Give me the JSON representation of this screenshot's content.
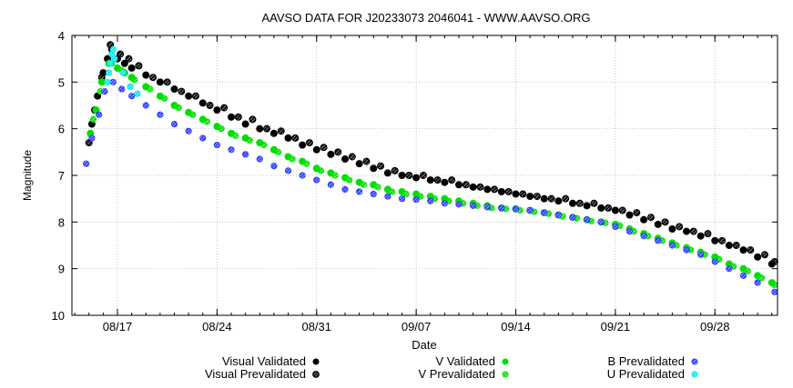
{
  "chart_data": {
    "type": "scatter",
    "title": "AAVSO DATA FOR J20233073 2046041 - WWW.AAVSO.ORG",
    "xlabel": "Date",
    "ylabel": "Magnitude",
    "x_unit": "day of 2023 (tick labels mm/dd)",
    "xlim": [
      225.8,
      275.4
    ],
    "ylim": [
      10,
      4
    ],
    "y_reversed": true,
    "grid": true,
    "x_ticks": [
      {
        "x": 229,
        "label": "08/17"
      },
      {
        "x": 236,
        "label": "08/24"
      },
      {
        "x": 243,
        "label": "08/31"
      },
      {
        "x": 250,
        "label": "09/07"
      },
      {
        "x": 257,
        "label": "09/14"
      },
      {
        "x": 264,
        "label": "09/21"
      },
      {
        "x": 271,
        "label": "09/28"
      }
    ],
    "y_ticks": [
      4,
      5,
      6,
      7,
      8,
      9,
      10
    ],
    "legend_position": "bottom",
    "series": [
      {
        "name": "Visual Validated",
        "color": "#000000",
        "marker": "filled-circle",
        "x": [
          227.2,
          227.6,
          228.0,
          228.3,
          228.6,
          229.0,
          229.5,
          230.0,
          231.0,
          232.0,
          233.0,
          234.0,
          235.0,
          236.0,
          237.0,
          238.0,
          239.0,
          240.0,
          241.0,
          242.0,
          243.0,
          244.0,
          245.0,
          246.0,
          247.0,
          248.0,
          249.0,
          250.0,
          251.0,
          252.0,
          253.0,
          254.0,
          255.0,
          256.0,
          257.0,
          258.0,
          259.0,
          260.0,
          261.0,
          262.0,
          263.0,
          264.0,
          265.0,
          266.0,
          267.0,
          268.0,
          269.0,
          270.0,
          271.0,
          272.0,
          273.0,
          274.0,
          275.0
        ],
        "y": [
          5.9,
          5.3,
          4.8,
          4.5,
          4.3,
          4.5,
          4.6,
          4.7,
          4.85,
          5.0,
          5.15,
          5.3,
          5.45,
          5.6,
          5.75,
          5.9,
          6.0,
          6.1,
          6.2,
          6.35,
          6.45,
          6.55,
          6.65,
          6.75,
          6.85,
          6.95,
          7.0,
          7.05,
          7.1,
          7.15,
          7.2,
          7.25,
          7.3,
          7.35,
          7.4,
          7.45,
          7.5,
          7.55,
          7.6,
          7.65,
          7.7,
          7.75,
          7.85,
          7.95,
          8.05,
          8.15,
          8.2,
          8.3,
          8.4,
          8.5,
          8.6,
          8.75,
          8.9
        ]
      },
      {
        "name": "Visual Prevalidated",
        "color": "#000000",
        "marker": "hatched-circle",
        "x": [
          227.0,
          227.4,
          227.9,
          228.5,
          229.2,
          229.8,
          230.5,
          231.5,
          232.5,
          233.5,
          234.5,
          235.5,
          236.5,
          237.5,
          238.5,
          239.5,
          240.5,
          241.5,
          242.5,
          243.5,
          244.5,
          245.5,
          246.5,
          247.5,
          248.5,
          249.5,
          250.5,
          251.5,
          252.5,
          253.5,
          254.5,
          255.5,
          256.5,
          257.5,
          258.5,
          259.5,
          260.5,
          261.5,
          262.5,
          263.5,
          264.5,
          265.5,
          266.5,
          267.5,
          268.5,
          269.5,
          270.5,
          271.5,
          272.5,
          273.5,
          274.5,
          275.2
        ],
        "y": [
          6.3,
          5.6,
          4.9,
          4.2,
          4.4,
          4.5,
          4.65,
          4.9,
          5.0,
          5.2,
          5.3,
          5.5,
          5.55,
          5.75,
          5.8,
          6.0,
          6.05,
          6.2,
          6.3,
          6.4,
          6.5,
          6.6,
          6.7,
          6.8,
          6.9,
          7.0,
          7.0,
          7.1,
          7.1,
          7.2,
          7.25,
          7.3,
          7.35,
          7.4,
          7.45,
          7.5,
          7.5,
          7.6,
          7.6,
          7.7,
          7.75,
          7.8,
          7.9,
          8.0,
          8.1,
          8.2,
          8.25,
          8.4,
          8.5,
          8.6,
          8.7,
          8.85
        ]
      },
      {
        "name": "V Validated",
        "color": "#00e000",
        "marker": "filled-circle",
        "x": [
          227.1,
          227.5,
          227.9,
          228.4,
          229.0,
          229.5,
          230.0,
          231.0,
          232.0,
          233.0,
          234.0,
          235.0,
          236.0,
          237.0,
          238.0,
          239.0,
          240.0,
          241.0,
          242.0,
          243.0,
          244.0,
          245.0,
          246.0,
          247.0,
          248.0,
          249.0,
          250.0,
          251.0,
          252.0,
          253.0,
          254.0,
          255.0,
          256.0,
          257.0,
          258.0,
          259.0,
          260.0,
          261.0,
          262.0,
          263.0,
          264.0,
          265.0,
          266.0,
          267.0,
          268.0,
          269.0,
          270.0,
          271.0,
          272.0,
          273.0,
          274.0,
          275.0
        ],
        "y": [
          6.1,
          5.6,
          5.0,
          4.6,
          4.7,
          4.8,
          4.9,
          5.1,
          5.3,
          5.5,
          5.65,
          5.8,
          5.95,
          6.1,
          6.2,
          6.3,
          6.45,
          6.6,
          6.7,
          6.85,
          6.95,
          7.05,
          7.15,
          7.2,
          7.3,
          7.35,
          7.4,
          7.45,
          7.5,
          7.55,
          7.6,
          7.65,
          7.7,
          7.72,
          7.75,
          7.8,
          7.85,
          7.9,
          7.95,
          8.0,
          8.05,
          8.15,
          8.25,
          8.35,
          8.45,
          8.55,
          8.65,
          8.75,
          8.9,
          9.0,
          9.15,
          9.3
        ]
      },
      {
        "name": "V Prevalidated",
        "color": "#00e000",
        "marker": "hatched-circle",
        "x": [
          227.3,
          227.8,
          228.6,
          229.3,
          230.2,
          231.3,
          232.3,
          233.3,
          234.3,
          235.3,
          236.3,
          237.3,
          238.3,
          239.3,
          240.3,
          241.3,
          242.3,
          243.3,
          244.3,
          245.3,
          246.3,
          247.3,
          248.3,
          249.3,
          250.3,
          251.3,
          252.3,
          253.3,
          254.3,
          255.3,
          256.3,
          257.3,
          258.3,
          259.3,
          260.3,
          261.3,
          262.3,
          263.3,
          264.3,
          265.3,
          266.3,
          267.3,
          268.3,
          269.3,
          270.3,
          271.3,
          272.3,
          273.3,
          274.3,
          275.2
        ],
        "y": [
          5.8,
          5.2,
          4.6,
          4.75,
          4.95,
          5.15,
          5.35,
          5.55,
          5.7,
          5.85,
          6.0,
          6.15,
          6.25,
          6.35,
          6.5,
          6.65,
          6.75,
          6.9,
          7.0,
          7.1,
          7.2,
          7.25,
          7.35,
          7.4,
          7.45,
          7.5,
          7.55,
          7.6,
          7.65,
          7.7,
          7.72,
          7.75,
          7.78,
          7.82,
          7.88,
          7.92,
          7.98,
          8.02,
          8.08,
          8.2,
          8.3,
          8.4,
          8.5,
          8.6,
          8.7,
          8.8,
          8.95,
          9.05,
          9.2,
          9.35
        ]
      },
      {
        "name": "B Prevalidated",
        "color": "#2a3cff",
        "marker": "hatched-circle",
        "x": [
          226.8,
          227.2,
          227.7,
          228.1,
          228.7,
          229.3,
          230.0,
          231.0,
          232.0,
          233.0,
          234.0,
          235.0,
          236.0,
          237.0,
          238.0,
          239.0,
          240.0,
          241.0,
          242.0,
          243.0,
          244.0,
          245.0,
          246.0,
          247.0,
          248.0,
          249.0,
          250.0,
          251.0,
          252.0,
          253.0,
          254.0,
          255.0,
          256.0,
          257.0,
          258.0,
          259.0,
          260.0,
          261.0,
          262.0,
          263.0,
          264.0,
          265.0,
          266.0,
          267.0,
          268.0,
          269.0,
          270.0,
          271.0,
          272.0,
          273.0,
          274.0,
          275.2
        ],
        "y": [
          6.75,
          6.2,
          5.7,
          5.2,
          5.0,
          5.15,
          5.3,
          5.5,
          5.7,
          5.9,
          6.05,
          6.2,
          6.35,
          6.45,
          6.55,
          6.65,
          6.8,
          6.9,
          7.0,
          7.1,
          7.2,
          7.3,
          7.35,
          7.4,
          7.45,
          7.5,
          7.52,
          7.55,
          7.6,
          7.62,
          7.65,
          7.68,
          7.7,
          7.72,
          7.75,
          7.8,
          7.85,
          7.9,
          7.95,
          8.0,
          8.1,
          8.2,
          8.3,
          8.4,
          8.5,
          8.6,
          8.7,
          8.85,
          9.0,
          9.15,
          9.3,
          9.5
        ]
      },
      {
        "name": "U Prevalidated",
        "color": "#00e8f0",
        "marker": "hatched-circle",
        "x": [
          228.3,
          228.4,
          228.5,
          228.6,
          228.7,
          228.8,
          229.4,
          229.9,
          230.4
        ],
        "y": [
          5.0,
          4.8,
          4.6,
          4.4,
          4.3,
          4.5,
          4.8,
          5.1,
          5.25
        ]
      }
    ]
  }
}
